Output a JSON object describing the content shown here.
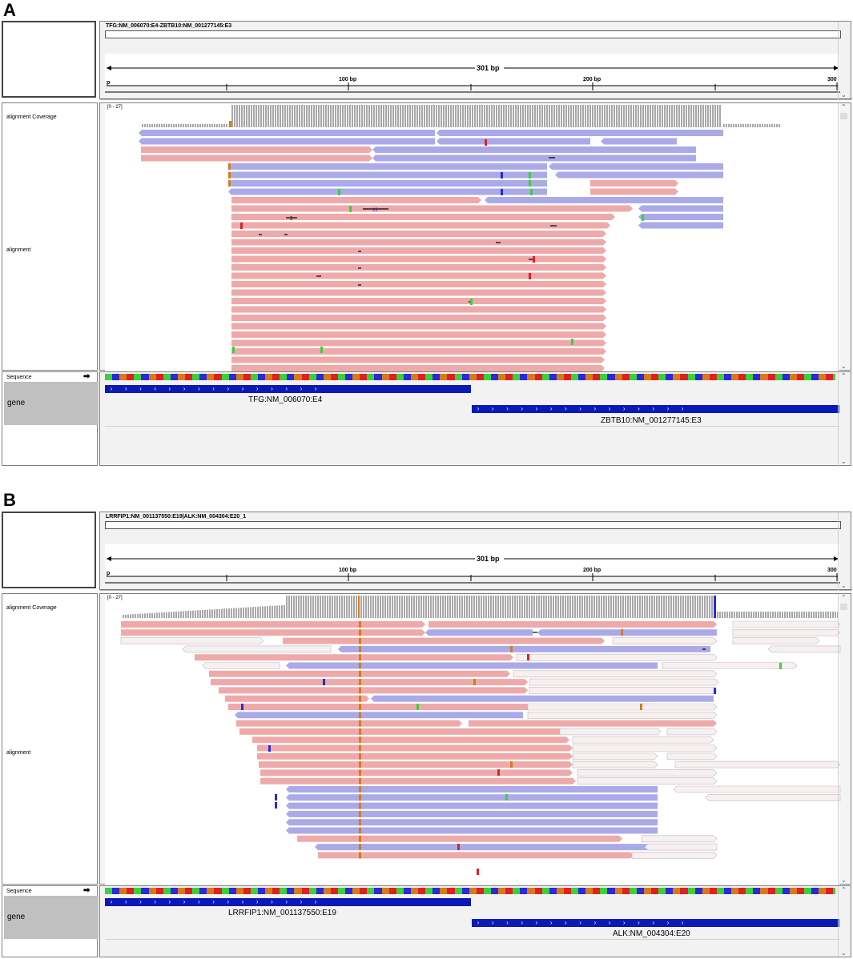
{
  "panels": [
    {
      "id": "A",
      "label": "A",
      "locus_title": "TFG:NM_006070:E4-ZBTB10:NM_001277145:E3",
      "ruler_span": "301 bp",
      "ruler_ticks": [
        "p",
        "100 bp",
        "200 bp",
        "300"
      ],
      "coverage_range": "[0 - 27]",
      "tracks": {
        "coverage": "alignment Coverage",
        "alignment": "alignment",
        "sequence": "Sequence",
        "gene": "gene"
      },
      "genes": [
        {
          "name": "TFG:NM_006070:E4"
        },
        {
          "name": "ZBTB10:NM_001277145:E3"
        }
      ],
      "indel_labels": [
        "5",
        "12"
      ]
    },
    {
      "id": "B",
      "label": "B",
      "locus_title": "LRRFIP1:NM_001137550:E19|ALK:NM_004304:E20_1",
      "ruler_span": "301 bp",
      "ruler_ticks": [
        "p",
        "100 bp",
        "200 bp",
        "300"
      ],
      "coverage_range": "[0 - 27]",
      "tracks": {
        "coverage": "alignment Coverage",
        "alignment": "alignment",
        "sequence": "Sequence",
        "gene": "gene"
      },
      "genes": [
        {
          "name": "LRRFIP1:NM_001137550:E19"
        },
        {
          "name": "ALK:NM_004304:E20"
        }
      ]
    }
  ],
  "colors": {
    "forward_read": "#eeaaaa",
    "reverse_read": "#aaaae8",
    "faded_read": "#f8f0f0",
    "mismatch_A": "#3ad13a",
    "mismatch_C": "#2a2ad8",
    "mismatch_G": "#d87a1a",
    "mismatch_T": "#e02020",
    "gene": "#0a1ab8",
    "coverage": "#a8a8a8"
  }
}
